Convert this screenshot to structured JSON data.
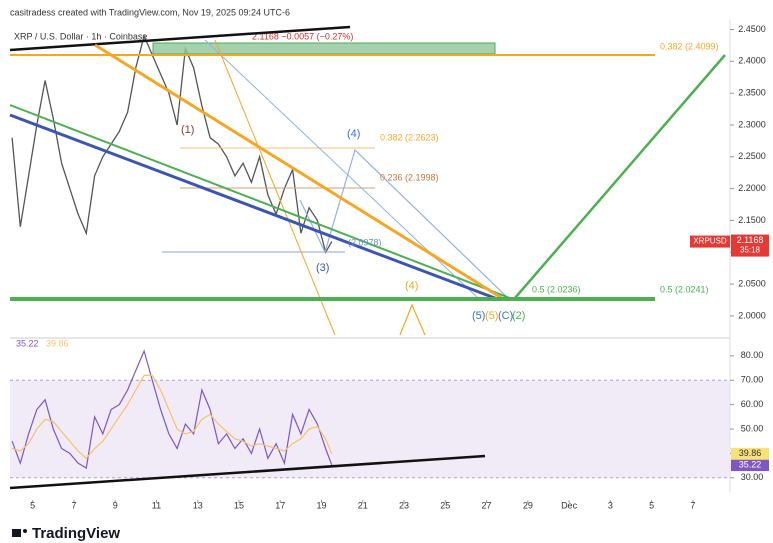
{
  "chart_data": [
    {
      "type": "line",
      "title": "casitradess created with TradingView.com, Nov 19, 2025 09:24 UTC-6",
      "subtitle": "XRP / U.S. Dollar · 1h · Coinbase",
      "change": "2.1168 −0.0057 (−0.27%)",
      "x": [
        4,
        4.4,
        4.8,
        5.2,
        5.6,
        6,
        6.4,
        6.8,
        7.2,
        7.6,
        8,
        8.4,
        8.8,
        9.2,
        9.6,
        10,
        10.4,
        10.8,
        11.2,
        11.6,
        12,
        12.4,
        12.8,
        13.2,
        13.6,
        14,
        14.4,
        14.8,
        15.2,
        15.6,
        16,
        16.4,
        16.8,
        17.2,
        17.6,
        18,
        18.4,
        18.8,
        19.2,
        19.5
      ],
      "values": [
        2.28,
        2.14,
        2.22,
        2.3,
        2.37,
        2.31,
        2.24,
        2.2,
        2.16,
        2.13,
        2.22,
        2.25,
        2.27,
        2.29,
        2.32,
        2.39,
        2.44,
        2.41,
        2.38,
        2.35,
        2.3,
        2.42,
        2.39,
        2.33,
        2.28,
        2.27,
        2.25,
        2.22,
        2.24,
        2.21,
        2.25,
        2.19,
        2.16,
        2.2,
        2.23,
        2.13,
        2.17,
        2.15,
        2.1,
        2.1168
      ],
      "color": "#555555",
      "xlim": [
        3.9,
        38.8
      ],
      "ylim": [
        1.97,
        2.465
      ],
      "yticks": [
        {
          "value": 2.0,
          "label": "2.0000"
        },
        {
          "value": 2.05,
          "label": "2.0500"
        },
        {
          "value": 2.1,
          "label": "2.1000"
        },
        {
          "value": 2.15,
          "label": "2.1500"
        },
        {
          "value": 2.2,
          "label": "2.2000"
        },
        {
          "value": 2.25,
          "label": "2.2500"
        },
        {
          "value": 2.3,
          "label": "2.3000"
        },
        {
          "value": 2.35,
          "label": "2.3500"
        },
        {
          "value": 2.4,
          "label": "2.4000"
        },
        {
          "value": 2.45,
          "label": "2.4500"
        }
      ],
      "price_label": {
        "symbol": "XRPUSD",
        "value": 2.1168,
        "countdown": "35:18"
      },
      "annotations": [
        "0.382 (2.4099)",
        "0.382 (2.2623)",
        "0.236 (2.1998)",
        "(2.0978)",
        "0.5 (2.0236)",
        "0.5 (2.0241)",
        "(1)",
        "(4)",
        "(3)",
        "(4)",
        "(5)",
        "(5)",
        "(C)",
        "(2)"
      ]
    },
    {
      "type": "line",
      "x": [
        4,
        4.4,
        4.8,
        5.2,
        5.6,
        6,
        6.4,
        6.8,
        7.2,
        7.6,
        8,
        8.4,
        8.8,
        9.2,
        9.6,
        10,
        10.4,
        10.8,
        11.2,
        11.6,
        12,
        12.4,
        12.8,
        13.2,
        13.6,
        14,
        14.4,
        14.8,
        15.2,
        15.6,
        16,
        16.4,
        16.8,
        17.2,
        17.6,
        18,
        18.4,
        18.8,
        19.2,
        19.5
      ],
      "series": [
        {
          "color": "#7e57c2",
          "values": [
            45,
            36,
            48,
            58,
            62,
            50,
            42,
            40,
            36,
            34,
            55,
            48,
            58,
            60,
            66,
            74,
            82,
            70,
            58,
            48,
            42,
            52,
            48,
            66,
            58,
            44,
            48,
            42,
            46,
            40,
            50,
            38,
            44,
            36,
            56,
            48,
            58,
            52,
            42,
            35.22
          ],
          "last_label": "35.22",
          "label_bg": "#7e57c2"
        },
        {
          "color": "#f5c26b",
          "values": [
            42,
            41,
            44,
            50,
            54,
            53,
            49,
            45,
            41,
            38,
            42,
            45,
            50,
            55,
            60,
            66,
            72,
            72,
            66,
            58,
            50,
            48,
            49,
            54,
            56,
            52,
            49,
            46,
            45,
            43,
            44,
            43,
            42,
            41,
            44,
            46,
            50,
            51,
            46,
            39.86
          ],
          "last_label": "39.86",
          "label_bg": "#f7e27a"
        }
      ],
      "band": [
        30,
        70
      ],
      "xlim": [
        3.9,
        38.8
      ],
      "ylim": [
        25,
        86.5
      ],
      "yticks": [
        {
          "value": 30,
          "label": "30.00"
        },
        {
          "value": 40,
          "label": "40.00"
        },
        {
          "value": 50,
          "label": "50.00"
        },
        {
          "value": 60,
          "label": "60.00"
        },
        {
          "value": 70,
          "label": "70.00"
        },
        {
          "value": 80,
          "label": "80.00"
        }
      ],
      "xticks": [
        5,
        7,
        9,
        11,
        13,
        15,
        17,
        19,
        21,
        23,
        25,
        27,
        29,
        {
          "value": 31,
          "label": "Dec"
        },
        {
          "value": 33,
          "label": "3"
        },
        {
          "value": 35,
          "label": "5"
        },
        {
          "value": 37,
          "label": "7"
        }
      ]
    }
  ],
  "footer": "TradingView"
}
